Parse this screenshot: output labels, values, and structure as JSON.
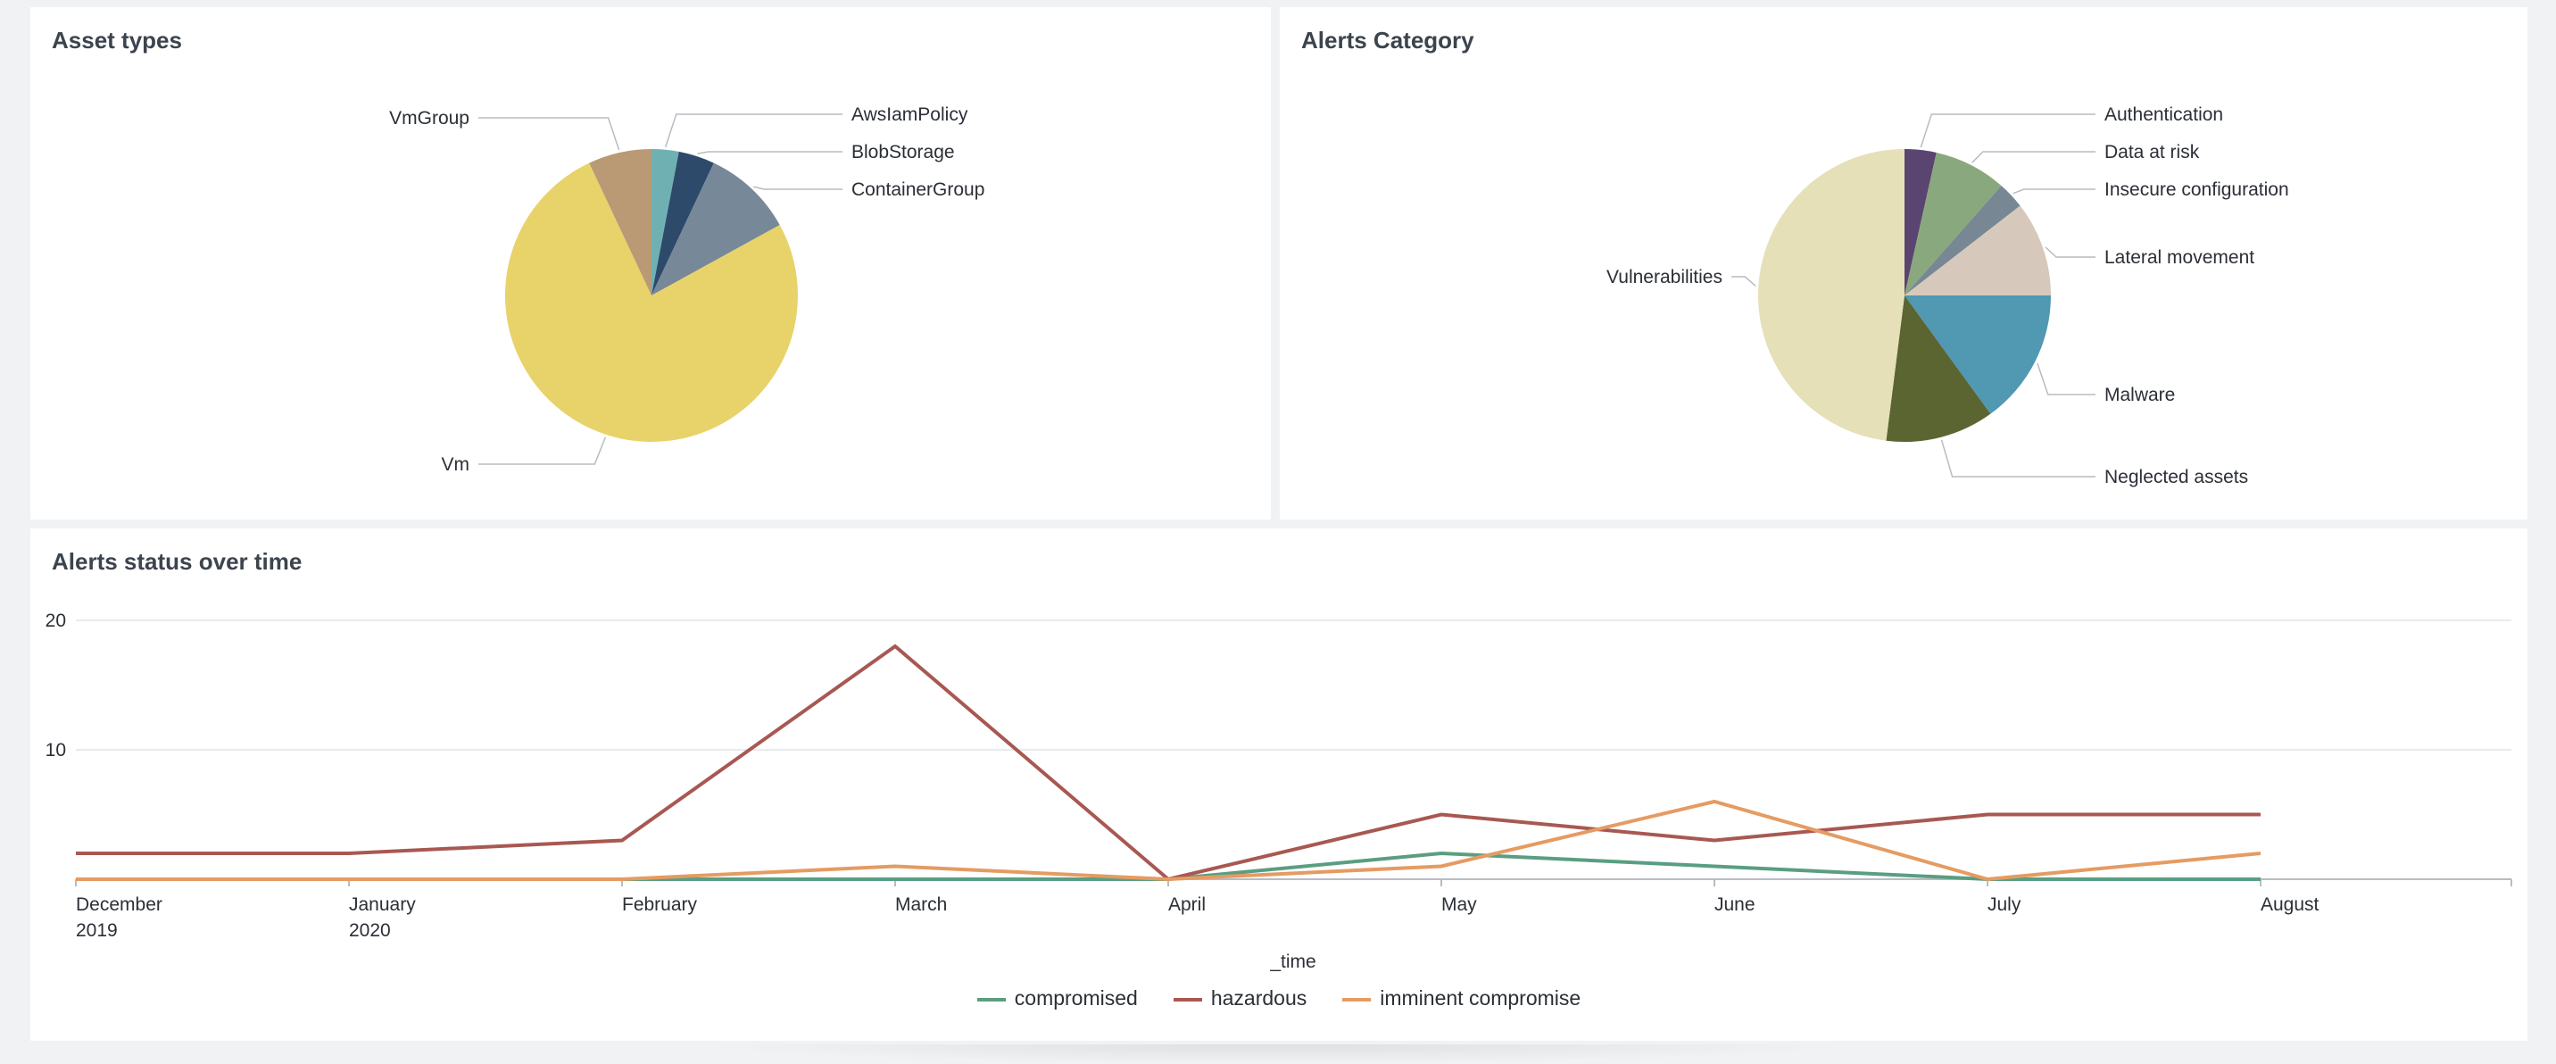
{
  "panels": {
    "asset_types": {
      "title": "Asset types"
    },
    "alerts_category": {
      "title": "Alerts Category"
    },
    "alerts_status": {
      "title": "Alerts status over time"
    }
  },
  "chart_data": [
    {
      "type": "pie",
      "title": "Asset types",
      "labels": [
        "AwsIamPolicy",
        "BlobStorage",
        "ContainerGroup",
        "Vm",
        "VmGroup"
      ],
      "values": [
        3,
        4,
        10,
        76,
        7
      ],
      "colors": [
        "#6fb1b3",
        "#2e4a6b",
        "#778899",
        "#e8d26a",
        "#b99a74"
      ]
    },
    {
      "type": "pie",
      "title": "Alerts Category",
      "labels": [
        "Authentication",
        "Data at risk",
        "Insecure configuration",
        "Lateral movement",
        "Malware",
        "Neglected assets",
        "Vulnerabilities"
      ],
      "values": [
        3.5,
        8,
        3,
        10.5,
        15,
        12,
        48
      ],
      "colors": [
        "#5a4470",
        "#8aa87d",
        "#778794",
        "#d6c9bb",
        "#5198b2",
        "#5b6532",
        "#e5e0b8"
      ]
    },
    {
      "type": "line",
      "title": "Alerts status over time",
      "xlabel": "_time",
      "ylabel": "",
      "x": [
        "December 2019",
        "January 2020",
        "February",
        "March",
        "April",
        "May",
        "June",
        "July",
        "August"
      ],
      "tick_lines": [
        [
          "December",
          "2019"
        ],
        [
          "January",
          "2020"
        ],
        [
          "February"
        ],
        [
          "March"
        ],
        [
          "April"
        ],
        [
          "May"
        ],
        [
          "June"
        ],
        [
          "July"
        ],
        [
          "August"
        ]
      ],
      "yticks": [
        10,
        20
      ],
      "ylim": [
        0,
        20
      ],
      "grid": true,
      "legend_position": "bottom",
      "series": [
        {
          "name": "compromised",
          "color": "#5a9e82",
          "values": [
            0,
            0,
            0,
            0,
            0,
            2,
            1,
            0,
            0
          ]
        },
        {
          "name": "hazardous",
          "color": "#a85852",
          "values": [
            2,
            2,
            3,
            18,
            0,
            5,
            3,
            5,
            5
          ]
        },
        {
          "name": "imminent compromise",
          "color": "#e59b62",
          "values": [
            0,
            0,
            0,
            1,
            0,
            1,
            6,
            0,
            2
          ]
        }
      ]
    }
  ]
}
